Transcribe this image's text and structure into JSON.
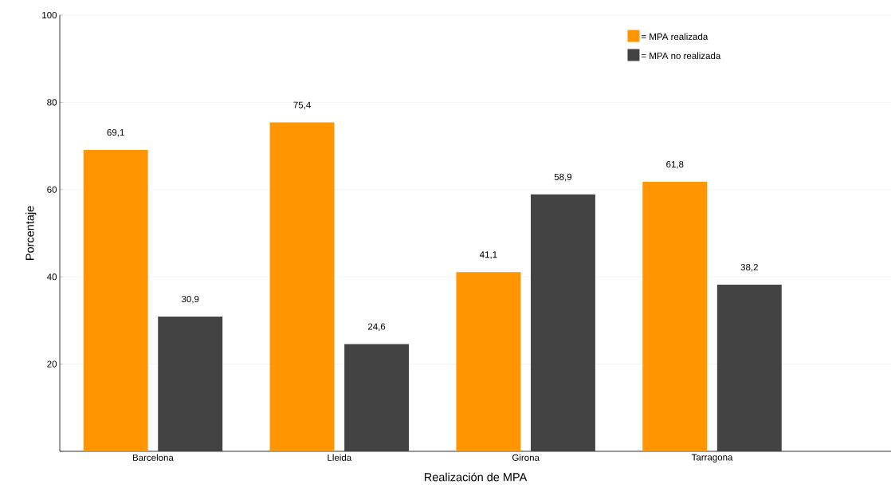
{
  "chart_data": {
    "type": "bar",
    "xlabel": "Realización de MPA",
    "ylabel": "Porcentaje",
    "categories": [
      "Barcelona",
      "Lleida",
      "Girona",
      "Tarragona"
    ],
    "series": [
      {
        "name": "= MPA realizada",
        "color": "#ff9500",
        "values": [
          69.1,
          75.4,
          41.1,
          61.8
        ],
        "value_labels": [
          "69,1",
          "75,4",
          "41,1",
          "61,8"
        ]
      },
      {
        "name": "= MPA no realizada",
        "color": "#434343",
        "values": [
          30.9,
          24.6,
          58.9,
          38.2
        ],
        "value_labels": [
          "30,9",
          "24,6",
          "58,9",
          "38,2"
        ]
      }
    ],
    "ylim": [
      0,
      100
    ],
    "yticks": [
      {
        "value": 0,
        "label": null
      },
      20,
      40,
      60,
      80,
      100
    ],
    "grid": "y",
    "legend": "top right"
  }
}
